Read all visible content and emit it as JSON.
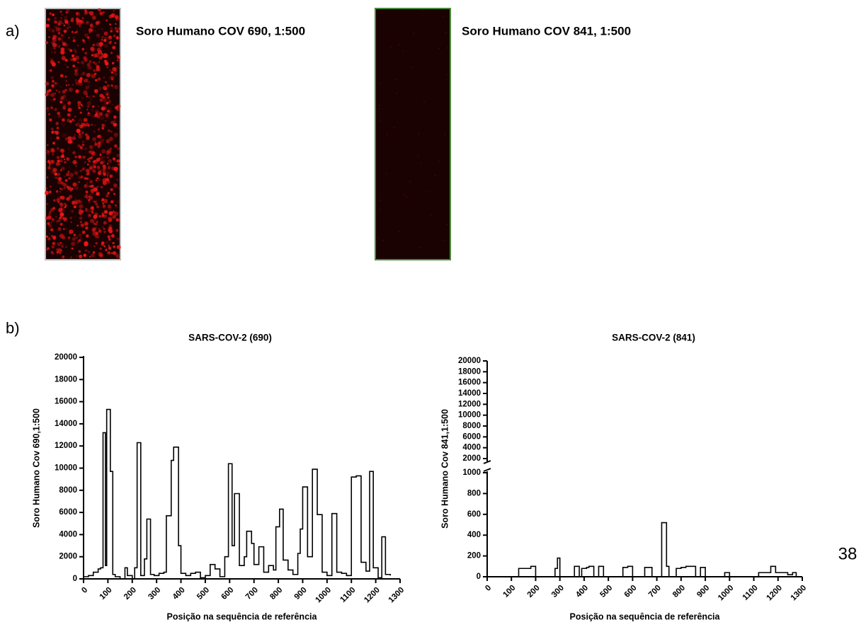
{
  "panels": {
    "a": "a)",
    "b": "b)"
  },
  "images": [
    {
      "caption": "Soro Humano  COV 690, 1:500"
    },
    {
      "caption": "Soro Humano  COV 841, 1:500"
    }
  ],
  "page_number": "38",
  "chart_data": [
    {
      "type": "line",
      "step": true,
      "title": "SARS-COV-2 (690)",
      "x_label": "Posição na sequência de referência",
      "y_label": "Soro Humano Cov 690,1:500",
      "color": "#000000",
      "x": [
        0,
        20,
        40,
        60,
        70,
        80,
        90,
        95,
        110,
        120,
        130,
        150,
        170,
        180,
        200,
        210,
        220,
        235,
        250,
        260,
        275,
        290,
        310,
        330,
        340,
        360,
        370,
        390,
        400,
        420,
        440,
        460,
        480,
        500,
        520,
        540,
        560,
        580,
        595,
        610,
        620,
        640,
        660,
        670,
        690,
        700,
        720,
        740,
        760,
        780,
        790,
        805,
        820,
        840,
        860,
        880,
        890,
        900,
        920,
        940,
        960,
        980,
        1000,
        1020,
        1040,
        1060,
        1080,
        1100,
        1120,
        1140,
        1160,
        1175,
        1190,
        1210,
        1225,
        1240,
        1260
      ],
      "values": [
        200,
        300,
        600,
        900,
        1000,
        13200,
        1200,
        15300,
        9700,
        400,
        200,
        0,
        1000,
        300,
        0,
        1000,
        12300,
        300,
        1800,
        5400,
        400,
        300,
        500,
        600,
        5700,
        10700,
        11900,
        3000,
        500,
        300,
        500,
        600,
        100,
        300,
        1300,
        900,
        200,
        2000,
        10400,
        3000,
        7700,
        1200,
        2000,
        4300,
        3200,
        1300,
        2900,
        600,
        1200,
        800,
        4700,
        6300,
        1700,
        800,
        400,
        2300,
        4500,
        8300,
        2000,
        9900,
        5800,
        600,
        300,
        5900,
        600,
        500,
        300,
        9200,
        9300,
        1500,
        700,
        9700,
        1000,
        100,
        3800,
        400,
        300
      ],
      "xlim": [
        0,
        1300
      ],
      "xticks": [
        0,
        100,
        200,
        300,
        400,
        500,
        600,
        700,
        800,
        900,
        1000,
        1100,
        1200,
        1300
      ],
      "ylim": [
        0,
        20000
      ],
      "yticks": [
        0,
        2000,
        4000,
        6000,
        8000,
        10000,
        12000,
        14000,
        16000,
        18000,
        20000
      ]
    },
    {
      "type": "line",
      "step": true,
      "title": "SARS-COV-2 (841)",
      "x_label": "Posição na sequência de referência",
      "y_label": "Soro Humano Cov 841,1:500",
      "color": "#000000",
      "x": [
        0,
        130,
        160,
        180,
        200,
        280,
        290,
        300,
        360,
        380,
        390,
        410,
        420,
        440,
        460,
        480,
        560,
        580,
        600,
        650,
        680,
        720,
        740,
        750,
        780,
        800,
        820,
        860,
        880,
        900,
        980,
        1000,
        1120,
        1150,
        1170,
        1190,
        1240,
        1260,
        1275
      ],
      "values": [
        0,
        80,
        80,
        100,
        0,
        80,
        180,
        0,
        100,
        0,
        80,
        90,
        100,
        0,
        100,
        0,
        90,
        100,
        0,
        90,
        0,
        520,
        100,
        0,
        80,
        90,
        100,
        0,
        90,
        0,
        40,
        0,
        40,
        40,
        100,
        40,
        20,
        40,
        0
      ],
      "xlim": [
        0,
        1300
      ],
      "xticks": [
        0,
        100,
        200,
        300,
        400,
        500,
        600,
        700,
        800,
        900,
        1000,
        1100,
        1200,
        1300
      ],
      "ylim": [
        0,
        1000
      ],
      "yticks": [
        0,
        200,
        400,
        600,
        800,
        1000
      ],
      "ylim_break": [
        2000,
        20000
      ],
      "yticks_break": [
        2000,
        4000,
        6000,
        8000,
        10000,
        12000,
        14000,
        16000,
        18000,
        20000
      ]
    }
  ]
}
